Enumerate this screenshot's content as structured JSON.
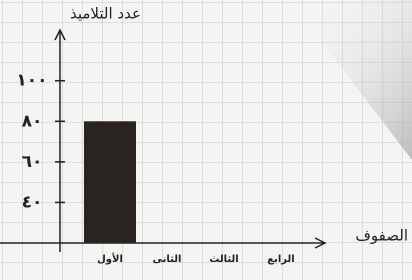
{
  "chart_data": {
    "type": "bar",
    "y_label": "عدد التلاميذ",
    "x_label": "الصفوف",
    "categories": [
      "الأول",
      "الثانى",
      "الثالث",
      "الرابع"
    ],
    "values": [
      80,
      null,
      null,
      null
    ],
    "color": "#2a2420",
    "ylim": [
      20,
      125
    ],
    "yticks": [
      {
        "value": 40,
        "label": "٤٠"
      },
      {
        "value": 60,
        "label": "٦٠"
      },
      {
        "value": 80,
        "label": "٨٠"
      },
      {
        "value": 100,
        "label": "١٠٠"
      }
    ],
    "grid": true
  }
}
